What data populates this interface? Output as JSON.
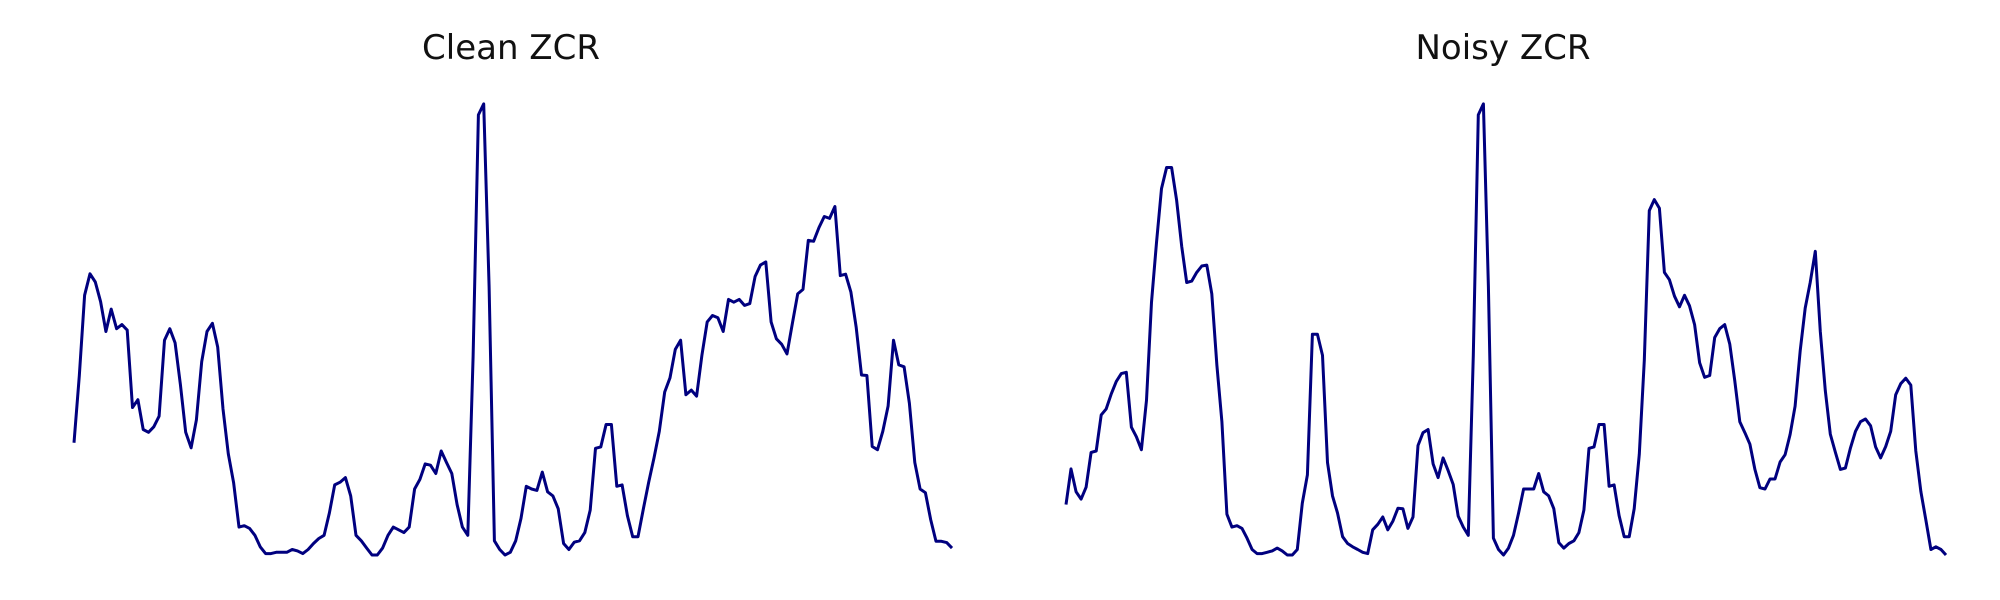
{
  "colors": {
    "line": "#00007f",
    "background": "#ffffff"
  },
  "chart_data": [
    {
      "type": "line",
      "title": "Clean ZCR",
      "xlabel": "",
      "ylabel": "",
      "axes_visible": false,
      "grid": false,
      "legend": "none",
      "xlim": [
        0,
        120
      ],
      "ylim": [
        0,
        1
      ],
      "series": [
        {
          "values": [
            0.245,
            0.391,
            0.567,
            0.614,
            0.596,
            0.553,
            0.488,
            0.537,
            0.494,
            0.503,
            0.491,
            0.322,
            0.339,
            0.274,
            0.268,
            0.28,
            0.303,
            0.469,
            0.494,
            0.463,
            0.372,
            0.268,
            0.234,
            0.295,
            0.422,
            0.488,
            0.506,
            0.454,
            0.319,
            0.221,
            0.158,
            0.061,
            0.064,
            0.058,
            0.043,
            0.018,
            0.003,
            0.003,
            0.006,
            0.006,
            0.006,
            0.012,
            0.009,
            0.003,
            0.012,
            0.025,
            0.036,
            0.043,
            0.092,
            0.153,
            0.159,
            0.169,
            0.129,
            0.043,
            0.031,
            0.015,
            0.0,
            0.0,
            0.015,
            0.043,
            0.061,
            0.055,
            0.049,
            0.061,
            0.144,
            0.165,
            0.199,
            0.196,
            0.178,
            0.227,
            0.202,
            0.178,
            0.11,
            0.061,
            0.043,
            0.433,
            0.961,
            0.985,
            0.586,
            0.031,
            0.012,
            0.0,
            0.006,
            0.031,
            0.08,
            0.15,
            0.144,
            0.141,
            0.181,
            0.138,
            0.129,
            0.101,
            0.025,
            0.012,
            0.028,
            0.031,
            0.049,
            0.098,
            0.233,
            0.236,
            0.285,
            0.285,
            0.15,
            0.153,
            0.086,
            0.04,
            0.04,
            0.101,
            0.159,
            0.212,
            0.27,
            0.356,
            0.387,
            0.449,
            0.469,
            0.35,
            0.36,
            0.347,
            0.436,
            0.509,
            0.523,
            0.518,
            0.488,
            0.558,
            0.552,
            0.558,
            0.545,
            0.549,
            0.608,
            0.633,
            0.64,
            0.509,
            0.472,
            0.46,
            0.439,
            0.506,
            0.57,
            0.58,
            0.687,
            0.685,
            0.715,
            0.739,
            0.735,
            0.761,
            0.61,
            0.613,
            0.574,
            0.497,
            0.393,
            0.392,
            0.237,
            0.23,
            0.27,
            0.325,
            0.469,
            0.415,
            0.411,
            0.331,
            0.202,
            0.144,
            0.136,
            0.077,
            0.03,
            0.03,
            0.027,
            0.015
          ]
        }
      ]
    },
    {
      "type": "line",
      "title": "Noisy ZCR",
      "xlabel": "",
      "ylabel": "",
      "axes_visible": false,
      "grid": false,
      "legend": "none",
      "xlim": [
        0,
        120
      ],
      "ylim": [
        0,
        1
      ],
      "series": [
        {
          "values": [
            0.11,
            0.188,
            0.138,
            0.122,
            0.148,
            0.224,
            0.227,
            0.306,
            0.319,
            0.352,
            0.379,
            0.396,
            0.399,
            0.279,
            0.258,
            0.23,
            0.338,
            0.552,
            0.682,
            0.8,
            0.846,
            0.846,
            0.775,
            0.674,
            0.595,
            0.598,
            0.617,
            0.631,
            0.633,
            0.57,
            0.414,
            0.291,
            0.089,
            0.061,
            0.064,
            0.058,
            0.037,
            0.012,
            0.003,
            0.003,
            0.006,
            0.009,
            0.015,
            0.009,
            0.0,
            0.0,
            0.012,
            0.113,
            0.175,
            0.482,
            0.482,
            0.436,
            0.202,
            0.129,
            0.092,
            0.04,
            0.025,
            0.018,
            0.012,
            0.006,
            0.003,
            0.055,
            0.067,
            0.083,
            0.055,
            0.074,
            0.102,
            0.101,
            0.058,
            0.083,
            0.239,
            0.267,
            0.274,
            0.199,
            0.169,
            0.212,
            0.184,
            0.154,
            0.085,
            0.061,
            0.043,
            0.436,
            0.961,
            0.985,
            0.586,
            0.037,
            0.012,
            0.0,
            0.015,
            0.043,
            0.092,
            0.144,
            0.144,
            0.144,
            0.178,
            0.138,
            0.129,
            0.101,
            0.027,
            0.015,
            0.025,
            0.031,
            0.049,
            0.098,
            0.233,
            0.236,
            0.285,
            0.285,
            0.15,
            0.153,
            0.086,
            0.04,
            0.04,
            0.101,
            0.22,
            0.425,
            0.752,
            0.776,
            0.757,
            0.617,
            0.601,
            0.565,
            0.542,
            0.567,
            0.544,
            0.503,
            0.42,
            0.388,
            0.392,
            0.475,
            0.494,
            0.503,
            0.46,
            0.38,
            0.291,
            0.267,
            0.242,
            0.187,
            0.147,
            0.144,
            0.166,
            0.166,
            0.203,
            0.219,
            0.263,
            0.325,
            0.446,
            0.539,
            0.595,
            0.663,
            0.488,
            0.359,
            0.264,
            0.224,
            0.187,
            0.19,
            0.234,
            0.27,
            0.291,
            0.297,
            0.282,
            0.236,
            0.212,
            0.237,
            0.27,
            0.35,
            0.374,
            0.386,
            0.371,
            0.227,
            0.138,
            0.076,
            0.012,
            0.018,
            0.012,
            0.0
          ]
        }
      ]
    }
  ]
}
